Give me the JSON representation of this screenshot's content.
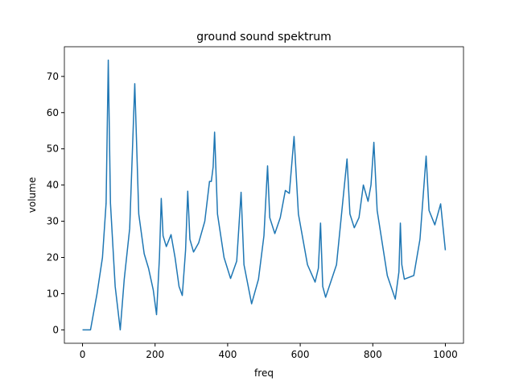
{
  "chart_data": {
    "type": "line",
    "title": "ground sound spektrum",
    "x_label": "freq",
    "y_label": "volume",
    "series": [
      {
        "name": "volume",
        "color": "#1f77b4",
        "x": [
          0,
          22,
          40,
          55,
          65,
          71,
          77,
          90,
          104,
          115,
          130,
          144,
          155,
          170,
          182,
          195,
          204,
          212,
          217,
          222,
          231,
          244,
          255,
          266,
          275,
          284,
          290,
          296,
          306,
          320,
          337,
          350,
          355,
          360,
          364,
          372,
          390,
          408,
          425,
          437,
          445,
          466,
          485,
          500,
          510,
          516,
          530,
          545,
          559,
          570,
          583,
          595,
          620,
          641,
          650,
          656,
          662,
          670,
          700,
          729,
          737,
          749,
          762,
          774,
          787,
          795,
          803,
          812,
          840,
          862,
          872,
          876,
          880,
          887,
          913,
          930,
          947,
          955,
          971,
          987,
          1000
        ],
        "values": [
          0,
          0,
          10,
          20,
          35,
          74.5,
          35,
          12,
          0,
          14,
          28,
          68,
          32,
          21,
          17,
          11,
          4.2,
          20,
          36.3,
          26,
          23,
          26.3,
          20,
          12,
          9.5,
          22,
          38.3,
          25,
          21.5,
          24,
          30,
          41,
          41,
          45,
          54.6,
          32,
          20,
          14.2,
          19,
          38,
          18,
          7.2,
          14,
          26,
          45.3,
          31,
          26.6,
          31,
          38.5,
          37.7,
          53.4,
          32,
          18,
          13.2,
          17,
          29.5,
          12,
          9,
          18,
          47.2,
          32,
          28.2,
          31,
          40,
          35.5,
          40,
          51.8,
          33,
          15,
          8.5,
          16,
          29.5,
          18,
          14,
          15,
          25,
          48,
          33,
          29,
          34.8,
          22
        ]
      }
    ],
    "xlim": [
      -50,
      1050
    ],
    "ylim": [
      -3.7,
      78.2
    ],
    "xticks": [
      0,
      200,
      400,
      600,
      800,
      1000
    ],
    "yticks": [
      0,
      10,
      20,
      30,
      40,
      50,
      60,
      70
    ]
  }
}
